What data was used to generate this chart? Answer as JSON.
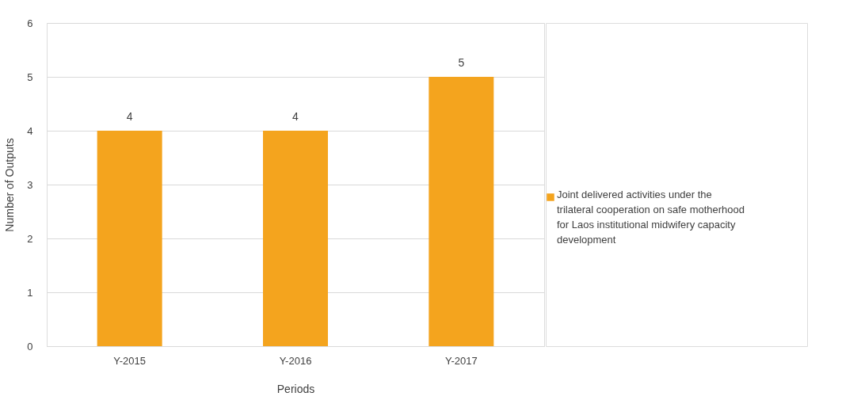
{
  "chart_data": {
    "type": "bar",
    "xlabel": "Periods",
    "ylabel": "Number of Outputs",
    "categories": [
      "Y-2015",
      "Y-2016",
      "Y-2017"
    ],
    "series": [
      {
        "name": "Joint delivered activities under the trilateral cooperation on safe motherhood  for Laos institutional midwifery capacity development",
        "color": "#f4a41e",
        "values": [
          4,
          4,
          5
        ]
      }
    ],
    "ylim": [
      0,
      6
    ],
    "yticks": [
      0,
      1,
      2,
      3,
      4,
      5,
      6
    ],
    "grid": "y",
    "legend": "right",
    "data_labels": true
  }
}
